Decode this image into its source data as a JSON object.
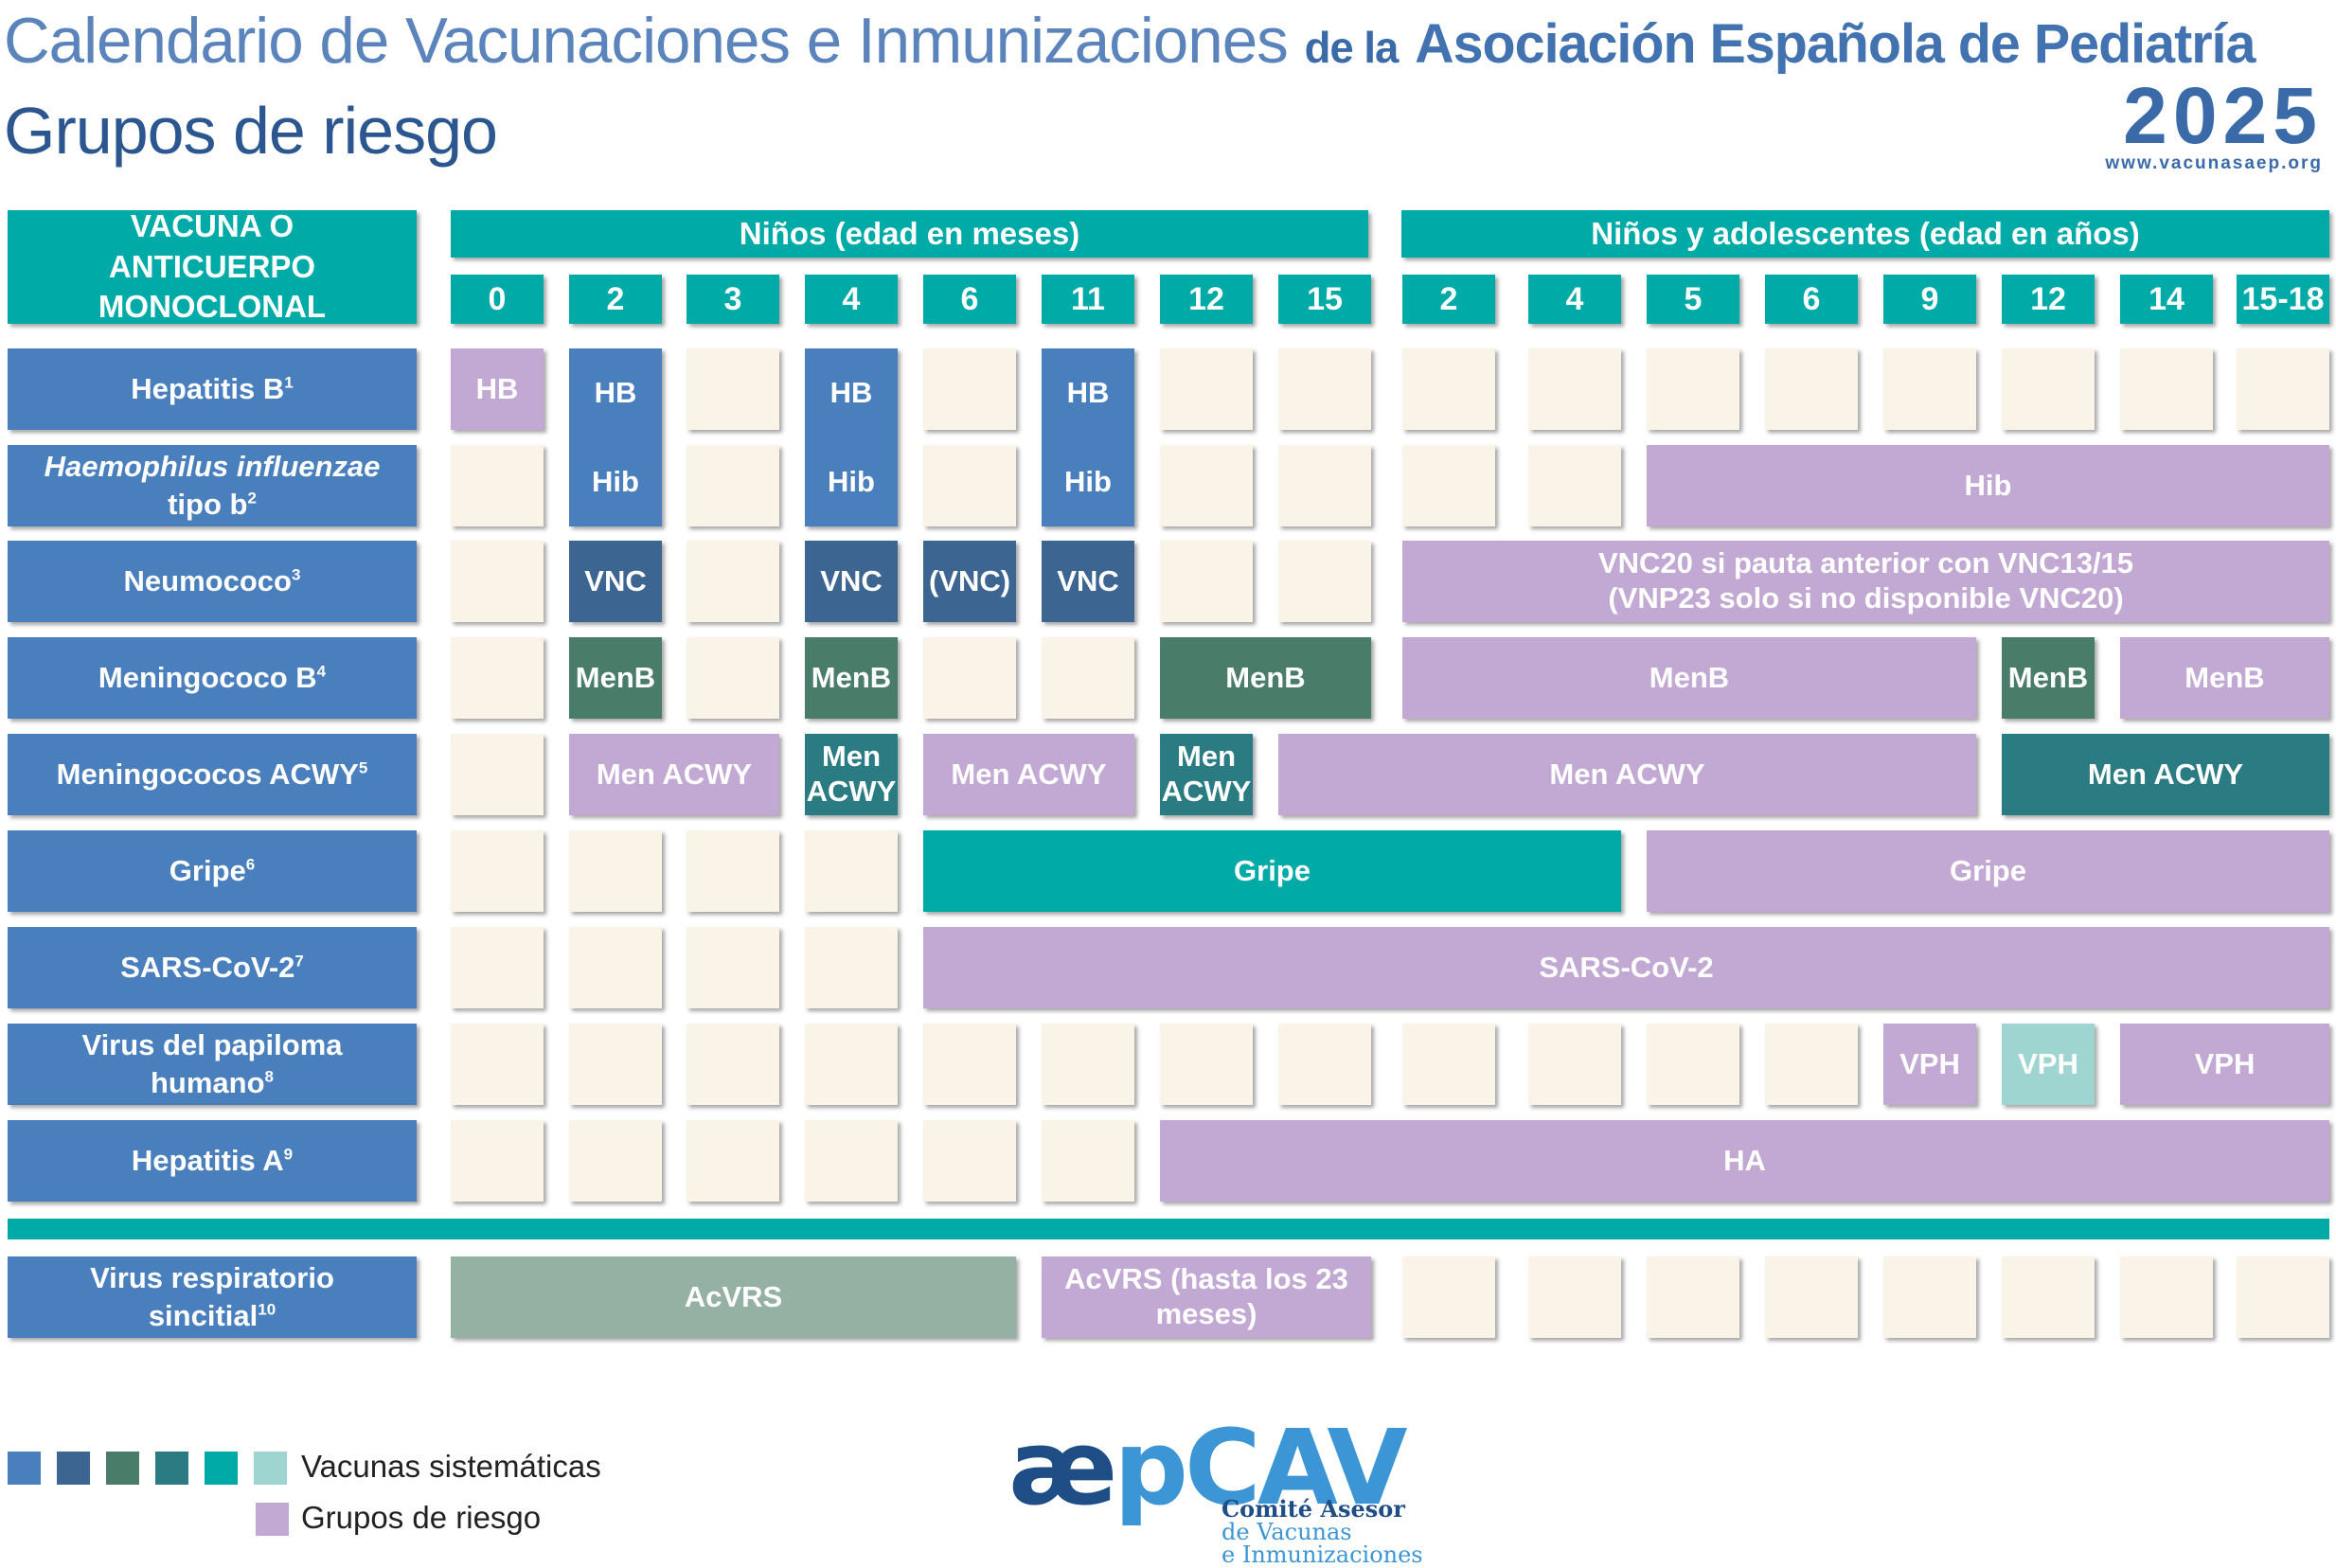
{
  "header": {
    "title_a": "Calendario de Vacunaciones e Inmunizaciones",
    "title_b": "de la",
    "title_c": "Asociación Española de Pediatría",
    "subtitle": "Grupos de riesgo",
    "year": "2025",
    "website": "www.vacunasaep.org"
  },
  "table": {
    "corner": [
      "VACUNA O",
      "ANTICUERPO MONOCLONAL"
    ],
    "group_months": "Niños (edad en meses)",
    "group_years": "Niños y adolescentes (edad en años)",
    "ages_months": [
      "0",
      "2",
      "3",
      "4",
      "6",
      "11",
      "12",
      "15"
    ],
    "ages_years": [
      "2",
      "4",
      "5",
      "6",
      "9",
      "12",
      "14",
      "15-18"
    ],
    "rows": [
      {
        "label": "Hepatitis B",
        "sup": "1",
        "italic": false
      },
      {
        "label": "Haemophilus influenzae",
        "label2": "tipo b",
        "sup": "2",
        "italic": true
      },
      {
        "label": "Neumococo",
        "sup": "3",
        "italic": false
      },
      {
        "label": "Meningococo B",
        "sup": "4",
        "italic": false
      },
      {
        "label": "Meningococos ACWY",
        "sup": "5",
        "italic": false
      },
      {
        "label": "Gripe",
        "sup": "6",
        "italic": false
      },
      {
        "label": "SARS-CoV-2",
        "sup": "7",
        "italic": false
      },
      {
        "label": "Virus del papiloma",
        "label2": "humano",
        "sup": "8",
        "italic": false
      },
      {
        "label": "Hepatitis A",
        "sup": "9",
        "italic": false
      },
      {
        "label": "Virus respiratorio",
        "label2": "sincitial",
        "sup": "10",
        "italic": false
      }
    ],
    "bars": [
      {
        "row": 0,
        "from": 0,
        "to": 0,
        "text": "HB",
        "color": "#c2a9d3"
      },
      {
        "row": 0,
        "from": 1,
        "to": 1,
        "span_rows": 2,
        "text": "HB",
        "text2": "Hib",
        "color": "#4a7fbd"
      },
      {
        "row": 0,
        "from": 3,
        "to": 3,
        "span_rows": 2,
        "text": "HB",
        "text2": "Hib",
        "color": "#4a7fbd"
      },
      {
        "row": 0,
        "from": 5,
        "to": 5,
        "span_rows": 2,
        "text": "HB",
        "text2": "Hib",
        "color": "#4a7fbd"
      },
      {
        "row": 1,
        "from": 10,
        "to": 15,
        "text": "Hib",
        "color": "#c2a9d3"
      },
      {
        "row": 2,
        "from": 1,
        "to": 1,
        "text": "VNC",
        "color": "#3d6591"
      },
      {
        "row": 2,
        "from": 3,
        "to": 3,
        "text": "VNC",
        "color": "#3d6591"
      },
      {
        "row": 2,
        "from": 4,
        "to": 4,
        "text": "(VNC)",
        "color": "#3d6591"
      },
      {
        "row": 2,
        "from": 5,
        "to": 5,
        "text": "VNC",
        "color": "#3d6591"
      },
      {
        "row": 2,
        "from": 8,
        "to": 15,
        "text": "VNC20 si pauta anterior con VNC13/15",
        "text2": "(VNP23 solo si no disponible VNC20)",
        "color": "#c2a9d3"
      },
      {
        "row": 3,
        "from": 1,
        "to": 1,
        "text": "MenB",
        "color": "#4a7c6a"
      },
      {
        "row": 3,
        "from": 3,
        "to": 3,
        "text": "MenB",
        "color": "#4a7c6a"
      },
      {
        "row": 3,
        "from": 6,
        "to": 7,
        "text": "MenB",
        "color": "#4a7c6a"
      },
      {
        "row": 3,
        "from": 8,
        "to": 12,
        "text": "MenB",
        "color": "#c2a9d3"
      },
      {
        "row": 3,
        "from": 13,
        "to": 13,
        "text": "MenB",
        "color": "#4a7c6a"
      },
      {
        "row": 3,
        "from": 14,
        "to": 15,
        "text": "MenB",
        "color": "#c2a9d3"
      },
      {
        "row": 4,
        "from": 1,
        "to": 2,
        "text": "Men ACWY",
        "color": "#c2a9d3"
      },
      {
        "row": 4,
        "from": 3,
        "to": 3,
        "text": "Men",
        "text2": "ACWY",
        "color": "#2a7b82"
      },
      {
        "row": 4,
        "from": 4,
        "to": 5,
        "text": "Men ACWY",
        "color": "#c2a9d3"
      },
      {
        "row": 4,
        "from": 6,
        "to": 6,
        "text": "Men",
        "text2": "ACWY",
        "color": "#2a7b82"
      },
      {
        "row": 4,
        "from": 7,
        "to": 12,
        "text": "Men ACWY",
        "color": "#c2a9d3"
      },
      {
        "row": 4,
        "from": 13,
        "to": 15,
        "text": "Men ACWY",
        "color": "#2a7b82"
      },
      {
        "row": 5,
        "from": 4,
        "to": 9,
        "text": "Gripe",
        "color": "#00aaa7"
      },
      {
        "row": 5,
        "from": 10,
        "to": 15,
        "text": "Gripe",
        "color": "#c2a9d3"
      },
      {
        "row": 6,
        "from": 4,
        "to": 15,
        "text": "SARS-CoV-2",
        "color": "#c2a9d3"
      },
      {
        "row": 7,
        "from": 12,
        "to": 12,
        "text": "VPH",
        "color": "#c2a9d3"
      },
      {
        "row": 7,
        "from": 13,
        "to": 13,
        "text": "VPH",
        "color": "#9fd5d1"
      },
      {
        "row": 7,
        "from": 14,
        "to": 15,
        "text": "VPH",
        "color": "#c2a9d3"
      },
      {
        "row": 8,
        "from": 6,
        "to": 15,
        "text": "HA",
        "color": "#c2a9d3"
      },
      {
        "row": 9,
        "from": 0,
        "to": 4,
        "text": "AcVRS",
        "color": "#94b1a3"
      },
      {
        "row": 9,
        "from": 5,
        "to": 7,
        "text": "AcVRS (hasta los 23 meses)",
        "color": "#c2a9d3"
      }
    ]
  },
  "legend": {
    "systematic_label": "Vacunas sistemáticas",
    "risk_label": "Grupos de riesgo",
    "systematic_colors": [
      "#4a7fbd",
      "#3d6591",
      "#4a7c6a",
      "#2a7b82",
      "#00aaa7",
      "#9fd5d1"
    ],
    "risk_color": "#c2a9d3"
  },
  "logo": {
    "ae": "æ",
    "p": "p",
    "cav": "CAV",
    "line1": "Comité Asesor",
    "line2": "de Vacunas",
    "line3": "e Inmunizaciones"
  }
}
